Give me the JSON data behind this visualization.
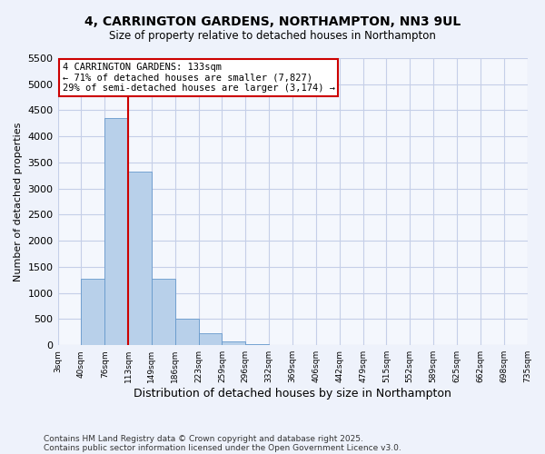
{
  "title": "4, CARRINGTON GARDENS, NORTHAMPTON, NN3 9UL",
  "subtitle": "Size of property relative to detached houses in Northampton",
  "xlabel": "Distribution of detached houses by size in Northampton",
  "ylabel": "Number of detached properties",
  "bin_labels": [
    "3sqm",
    "40sqm",
    "76sqm",
    "113sqm",
    "149sqm",
    "186sqm",
    "223sqm",
    "259sqm",
    "296sqm",
    "332sqm",
    "369sqm",
    "406sqm",
    "442sqm",
    "479sqm",
    "515sqm",
    "552sqm",
    "589sqm",
    "625sqm",
    "662sqm",
    "698sqm",
    "735sqm"
  ],
  "bar_values": [
    0,
    1270,
    4350,
    3320,
    1280,
    500,
    230,
    80,
    20,
    5,
    2,
    0,
    0,
    0,
    0,
    0,
    0,
    0,
    0,
    0
  ],
  "bar_color": "#b8d0ea",
  "bar_edge_color": "#6699cc",
  "vline_color": "#cc0000",
  "annotation_text": "4 CARRINGTON GARDENS: 133sqm\n← 71% of detached houses are smaller (7,827)\n29% of semi-detached houses are larger (3,174) →",
  "annotation_box_color": "#ffffff",
  "annotation_box_edge": "#cc0000",
  "ylim": [
    0,
    5500
  ],
  "yticks": [
    0,
    500,
    1000,
    1500,
    2000,
    2500,
    3000,
    3500,
    4000,
    4500,
    5000,
    5500
  ],
  "footer1": "Contains HM Land Registry data © Crown copyright and database right 2025.",
  "footer2": "Contains public sector information licensed under the Open Government Licence v3.0.",
  "bg_color": "#eef2fb",
  "plot_bg_color": "#f4f7fd",
  "grid_color": "#c5cfe8",
  "title_fontsize": 10,
  "subtitle_fontsize": 8.5,
  "xlabel_fontsize": 9,
  "ylabel_fontsize": 8
}
